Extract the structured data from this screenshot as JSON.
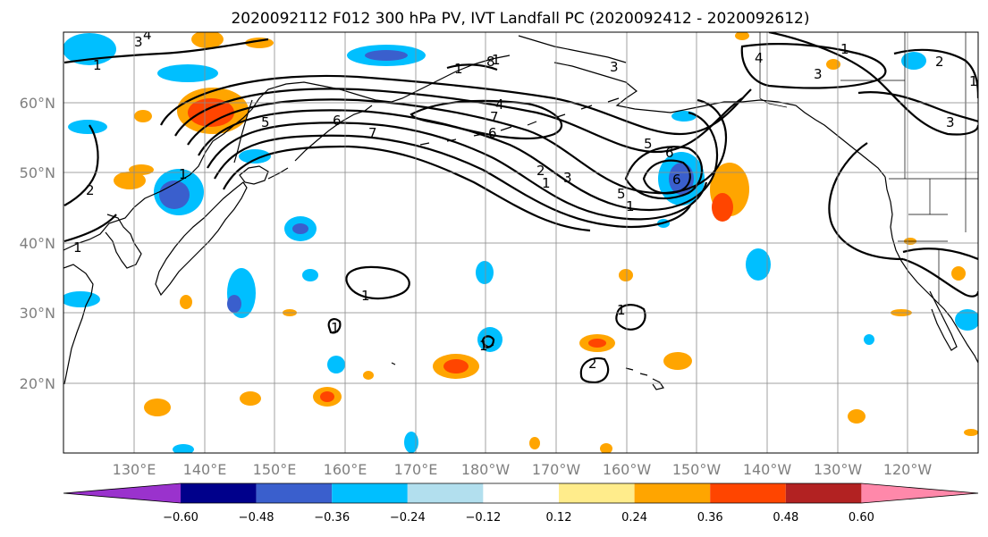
{
  "title": "2020092112 F012 300 hPa PV, IVT Landfall PC (2020092412 - 2020092612)",
  "latitude_labels": [
    "60°N",
    "50°N",
    "40°N",
    "30°N",
    "20°N"
  ],
  "longitude_labels": [
    "130°E",
    "140°E",
    "150°E",
    "160°E",
    "170°E",
    "180°W",
    "170°W",
    "160°W",
    "150°W",
    "140°W",
    "130°W",
    "120°W"
  ],
  "colorbar": {
    "tick_labels": [
      "−0.60",
      "−0.48",
      "−0.36",
      "−0.24",
      "−0.12",
      "0.12",
      "0.24",
      "0.36",
      "0.48",
      "0.60"
    ],
    "colors": [
      "#9a32cd",
      "#00008b",
      "#3a5fcd",
      "#00bfff",
      "#b2dfee",
      "#ffffff",
      "#ffec8b",
      "#ffa500",
      "#ff4500",
      "#b22222",
      "#ff88aa"
    ]
  },
  "contour_labels": [
    "1",
    "2",
    "3",
    "4",
    "5",
    "6",
    "7",
    "8",
    "1",
    "1",
    "1",
    "1",
    "2",
    "3",
    "4",
    "5",
    "6",
    "7",
    "6",
    "5",
    "3",
    "4",
    "3",
    "3",
    "2",
    "1",
    "2",
    "1",
    "1",
    "1",
    "1",
    "1",
    "1",
    "1",
    "6"
  ]
}
